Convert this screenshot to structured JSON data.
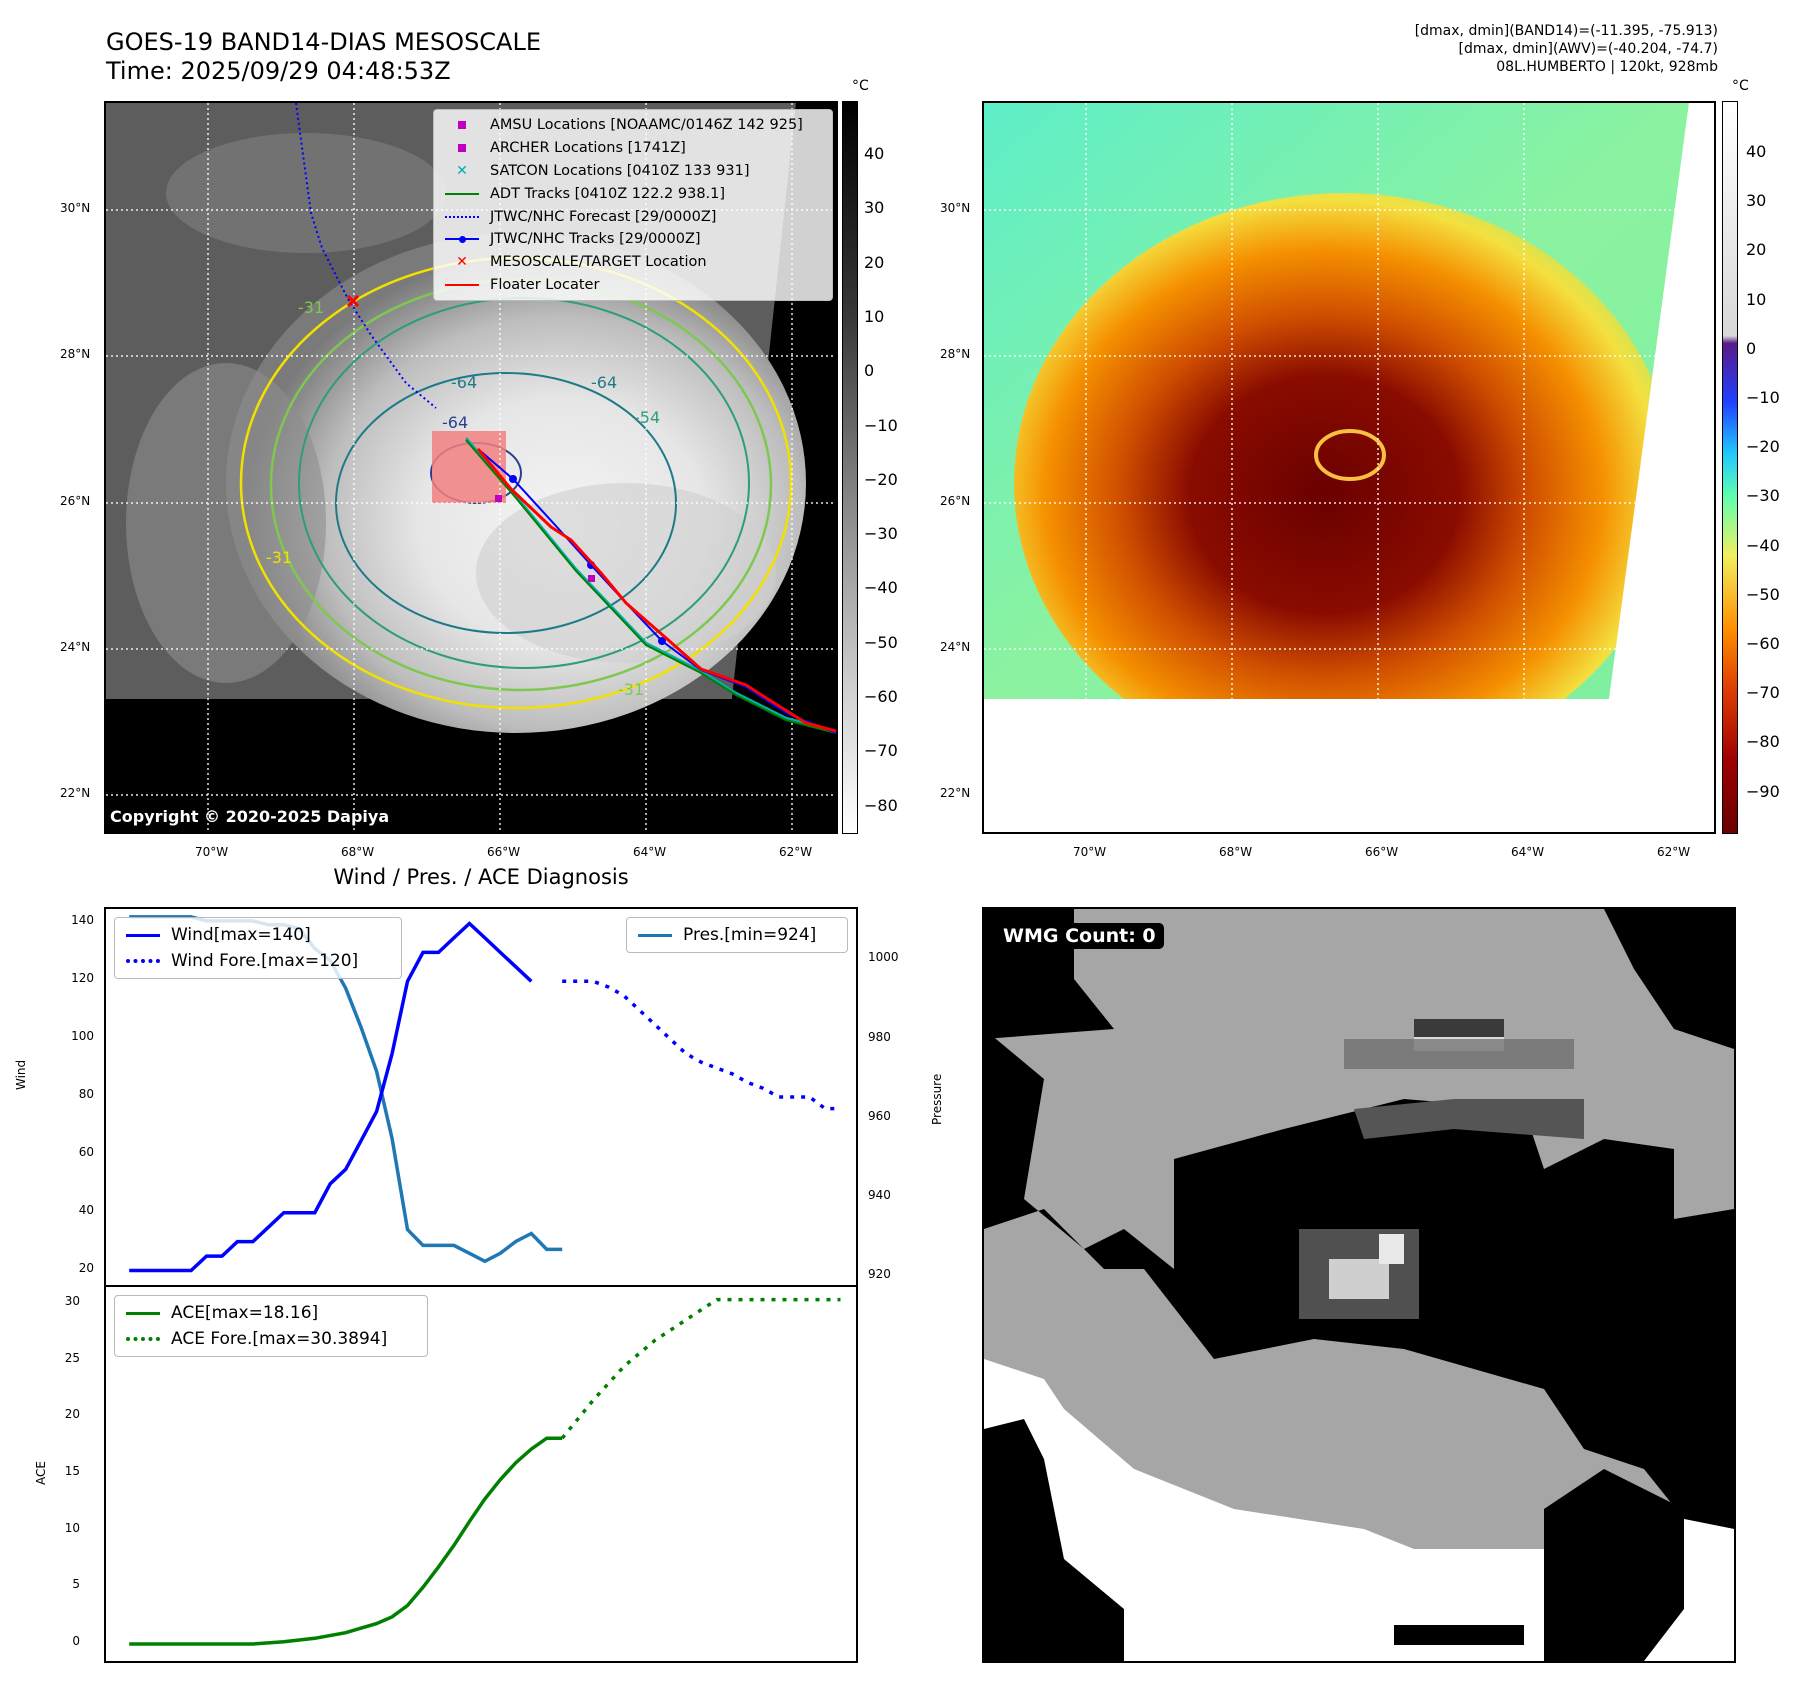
{
  "header": {
    "title_line1": "GOES-19 BAND14-DIAS MESOSCALE",
    "title_line2": "Time: 2025/09/29 04:48:53Z",
    "right_line1": "[dmax, dmin](BAND14)=(-11.395, -75.913)",
    "right_line2": "[dmax, dmin](AWV)=(-40.204, -74.7)",
    "right_line3": "08L.HUMBERTO | 120kt, 928mb"
  },
  "map": {
    "lat_labels": [
      "30°N",
      "28°N",
      "26°N",
      "24°N",
      "22°N"
    ],
    "lon_labels": [
      "70°W",
      "68°W",
      "66°W",
      "64°W",
      "62°W"
    ],
    "copyright": "Copyright © 2020-2025 Dapiya",
    "contour_labels": [
      "-64",
      "-64",
      "-54",
      "-31",
      "-31",
      "-64",
      "-31"
    ],
    "colorbar_unit": "°C",
    "colorbar_left_ticks": [
      "40",
      "30",
      "20",
      "10",
      "0",
      "−10",
      "−20",
      "−30",
      "−40",
      "−50",
      "−60",
      "−70",
      "−80"
    ],
    "colorbar_right_ticks": [
      "40",
      "30",
      "20",
      "10",
      "0",
      "−10",
      "−20",
      "−30",
      "−40",
      "−50",
      "−60",
      "−70",
      "−80",
      "−90"
    ],
    "legend": [
      {
        "label": "AMSU Locations [NOAAMC/0146Z 142 925]",
        "symbol": "square",
        "color": "#c000c0"
      },
      {
        "label": "ARCHER Locations [1741Z]",
        "symbol": "square",
        "color": "#c000c0"
      },
      {
        "label": "SATCON Locations [0410Z 133 931]",
        "symbol": "x",
        "color": "#00b0b0"
      },
      {
        "label": "ADT Tracks [0410Z 122.2 938.1]",
        "symbol": "line",
        "color": "#008000"
      },
      {
        "label": "JTWC/NHC Forecast [29/0000Z]",
        "symbol": "dotted",
        "color": "#0000ff"
      },
      {
        "label": "JTWC/NHC Tracks [29/0000Z]",
        "symbol": "line-dot",
        "color": "#0000ff"
      },
      {
        "label": "MESOSCALE/TARGET Location",
        "symbol": "x",
        "color": "#ff0000"
      },
      {
        "label": "Floater Locater",
        "symbol": "line",
        "color": "#ff0000"
      }
    ]
  },
  "diag": {
    "title": "Wind / Pres. / ACE Diagnosis",
    "wind_ylabel": "Wind",
    "pres_ylabel": "Pressure",
    "ace_ylabel": "ACE",
    "wind_ticks": [
      "140",
      "120",
      "100",
      "80",
      "60",
      "40",
      "20"
    ],
    "pres_ticks": [
      "1000",
      "980",
      "960",
      "940",
      "920"
    ],
    "ace_ticks": [
      "30",
      "25",
      "20",
      "15",
      "10",
      "5",
      "0"
    ],
    "wind_legend": [
      "Wind[max=140]",
      "Wind Fore.[max=120]"
    ],
    "pres_legend": "Pres.[min=924]",
    "ace_legend": [
      "ACE[max=18.16]",
      "ACE Fore.[max=30.3894]"
    ]
  },
  "wmg": {
    "label": "WMG Count: 0"
  },
  "chart_data": [
    {
      "type": "line",
      "title": "Wind / Pres. / ACE Diagnosis",
      "ylabel": "Wind",
      "ylim": [
        15,
        145
      ],
      "series": [
        {
          "name": "Wind[max=140]",
          "x": [
            0,
            1,
            2,
            3,
            4,
            5,
            6,
            7,
            8,
            9,
            10,
            11,
            12,
            13,
            14,
            15,
            16,
            17,
            18,
            19,
            20,
            21,
            22,
            23,
            24,
            25,
            26,
            27,
            28
          ],
          "values": [
            20,
            20,
            20,
            20,
            20,
            25,
            25,
            30,
            30,
            35,
            40,
            40,
            40,
            50,
            55,
            65,
            75,
            95,
            120,
            130,
            130,
            135,
            140,
            135,
            130,
            125,
            120,
            null,
            null
          ]
        },
        {
          "name": "Wind Fore.[max=120]",
          "x": [
            28,
            29,
            30,
            31,
            32,
            33,
            34,
            35,
            36,
            37,
            38,
            39,
            40,
            41,
            42,
            43,
            44,
            45,
            46
          ],
          "values": [
            120,
            120,
            120,
            118,
            115,
            110,
            105,
            100,
            95,
            92,
            90,
            88,
            85,
            83,
            80,
            80,
            80,
            76,
            76
          ]
        }
      ]
    },
    {
      "type": "line",
      "ylabel": "Pressure",
      "ylim": [
        918,
        1013
      ],
      "series": [
        {
          "name": "Pres.[min=924]",
          "x": [
            0,
            1,
            2,
            3,
            4,
            5,
            6,
            7,
            8,
            9,
            10,
            11,
            12,
            13,
            14,
            15,
            16,
            17,
            18,
            19,
            20,
            21,
            22,
            23,
            24,
            25,
            26,
            27,
            28
          ],
          "values": [
            1011,
            1011,
            1011,
            1011,
            1011,
            1010,
            1010,
            1010,
            1010,
            1009,
            1009,
            1008,
            1003,
            1000,
            993,
            983,
            972,
            955,
            932,
            928,
            928,
            928,
            926,
            924,
            926,
            929,
            931,
            927,
            927
          ]
        }
      ]
    },
    {
      "type": "line",
      "ylabel": "ACE",
      "ylim": [
        -1.5,
        31.5
      ],
      "series": [
        {
          "name": "ACE[max=18.16]",
          "x": [
            0,
            2,
            4,
            6,
            8,
            10,
            12,
            14,
            15,
            16,
            17,
            18,
            19,
            20,
            21,
            22,
            23,
            24,
            25,
            26,
            27,
            28
          ],
          "values": [
            0,
            0,
            0,
            0,
            0,
            0.2,
            0.5,
            1.0,
            1.4,
            1.8,
            2.4,
            3.4,
            5.0,
            6.8,
            8.7,
            10.8,
            12.8,
            14.5,
            16.0,
            17.2,
            18.16,
            18.16
          ]
        },
        {
          "name": "ACE Fore.[max=30.3894]",
          "x": [
            28,
            30,
            32,
            34,
            36,
            38,
            40,
            42,
            44,
            46
          ],
          "values": [
            18.16,
            21.5,
            24.5,
            26.8,
            28.6,
            30.3894,
            30.3894,
            30.3894,
            30.3894,
            30.3894
          ]
        }
      ]
    }
  ]
}
